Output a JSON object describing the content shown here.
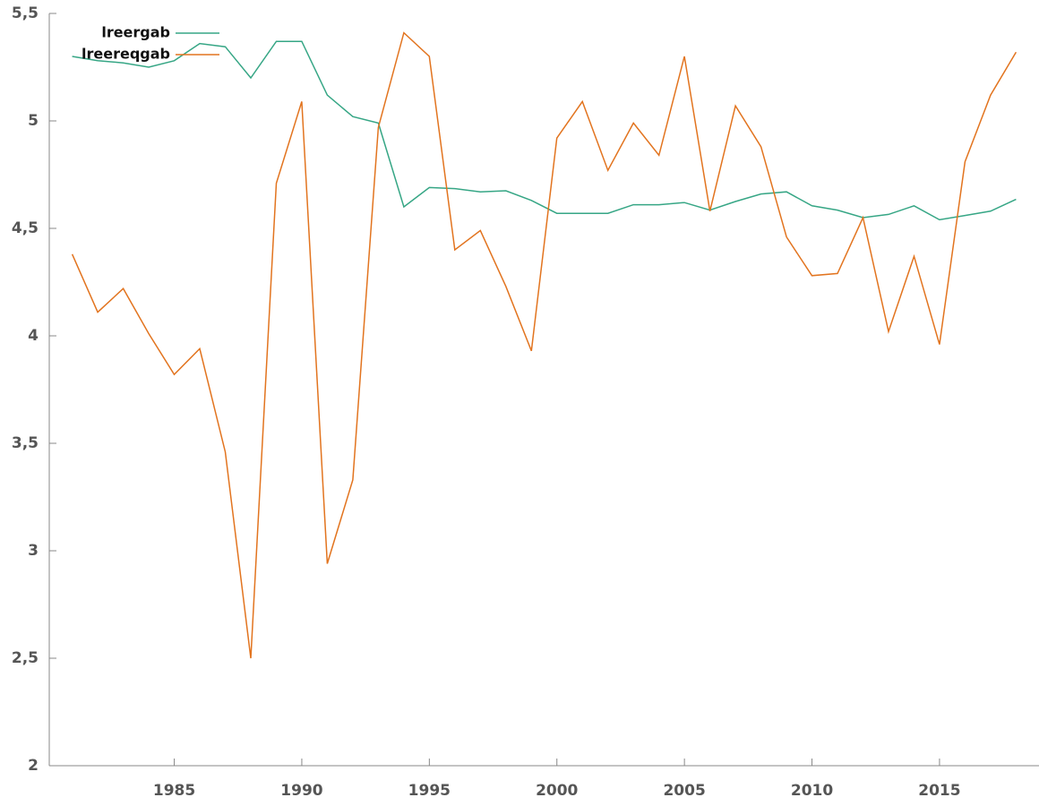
{
  "chart_data": {
    "type": "line",
    "x": [
      1981,
      1982,
      1983,
      1984,
      1985,
      1986,
      1987,
      1988,
      1989,
      1990,
      1991,
      1992,
      1993,
      1994,
      1995,
      1996,
      1997,
      1998,
      1999,
      2000,
      2001,
      2002,
      2003,
      2004,
      2005,
      2006,
      2007,
      2008,
      2009,
      2010,
      2011,
      2012,
      2013,
      2014,
      2015,
      2016,
      2017,
      2018
    ],
    "series": [
      {
        "name": "lreergab",
        "color": "#36a685",
        "values": [
          5.3,
          5.28,
          5.27,
          5.25,
          5.28,
          5.36,
          5.345,
          5.2,
          5.37,
          5.37,
          5.12,
          5.02,
          4.99,
          4.6,
          4.69,
          4.685,
          4.67,
          4.675,
          4.63,
          4.57,
          4.57,
          4.57,
          4.61,
          4.61,
          4.62,
          4.585,
          4.625,
          4.66,
          4.67,
          4.605,
          4.585,
          4.55,
          4.565,
          4.605,
          4.54,
          4.56,
          4.58,
          4.635
        ]
      },
      {
        "name": "lreereqgab",
        "color": "#e2741f",
        "values": [
          4.38,
          4.11,
          4.22,
          4.01,
          3.82,
          3.94,
          3.46,
          2.5,
          4.71,
          5.09,
          2.94,
          3.33,
          4.97,
          5.41,
          5.3,
          4.4,
          4.49,
          4.23,
          3.93,
          4.92,
          5.09,
          4.77,
          4.99,
          4.84,
          5.3,
          4.58,
          5.07,
          4.88,
          4.46,
          4.28,
          4.29,
          4.55,
          4.02,
          4.37,
          3.96,
          4.81,
          5.12,
          5.32
        ]
      }
    ],
    "xlim": [
      1980.1,
      2018.9
    ],
    "xticks": [
      1985,
      1990,
      1995,
      2000,
      2005,
      2010,
      2015
    ],
    "ylim": [
      2,
      5.5
    ],
    "yticks": [
      2,
      {
        "value": 2.5,
        "label": "2,5"
      },
      3,
      {
        "value": 3.5,
        "label": "3,5"
      },
      4,
      {
        "value": 4.5,
        "label": "4,5"
      },
      5,
      {
        "value": 5.5,
        "label": "5,5"
      }
    ],
    "legend": "top-left"
  }
}
